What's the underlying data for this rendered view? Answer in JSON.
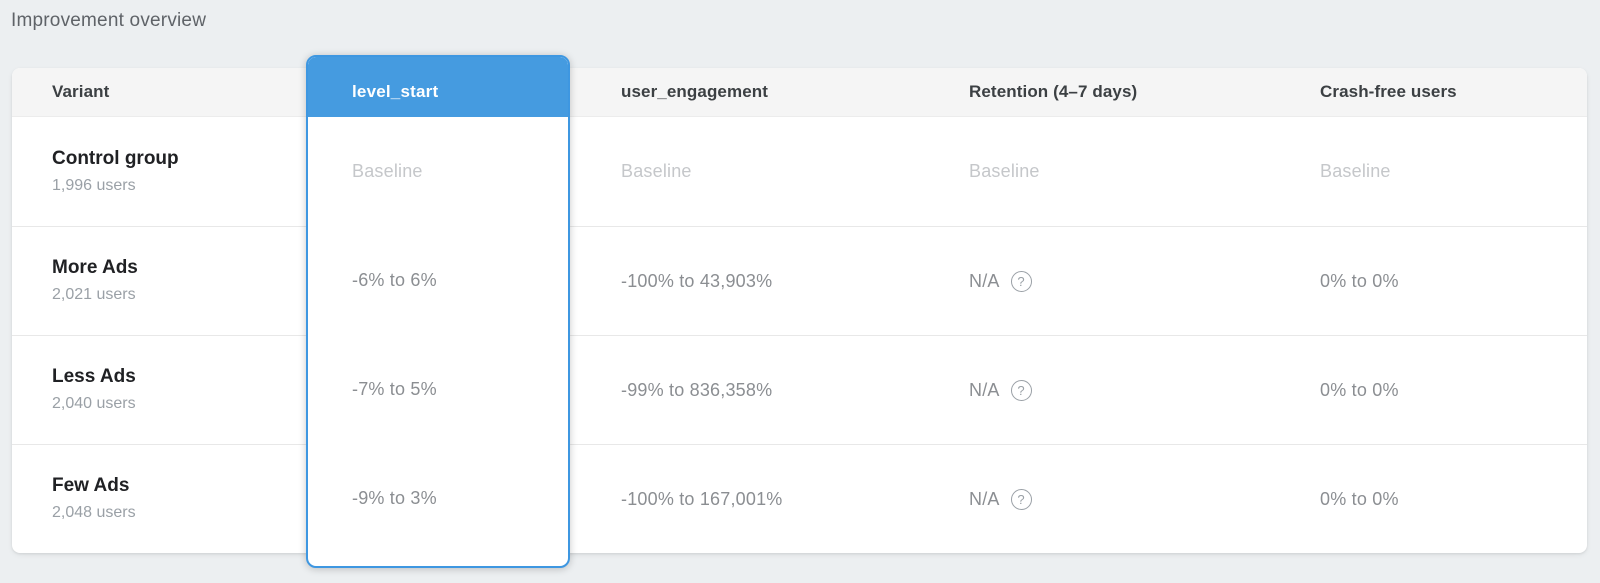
{
  "page": {
    "title": "Improvement overview"
  },
  "table": {
    "accent_color": "#459be0",
    "accent_border_color": "#3e97e1",
    "columns": [
      {
        "id": "variant",
        "label": "Variant",
        "selected": false
      },
      {
        "id": "level_start",
        "label": "level_start",
        "selected": true
      },
      {
        "id": "user_engagement",
        "label": "user_engagement",
        "selected": false
      },
      {
        "id": "retention",
        "label": "Retention (4–7 days)",
        "selected": false
      },
      {
        "id": "crash_free",
        "label": "Crash-free users",
        "selected": false
      }
    ],
    "icons": {
      "help_glyph": "?"
    },
    "rows": [
      {
        "variant": "Control group",
        "users": "1,996 users",
        "level_start": "Baseline",
        "user_engagement": "Baseline",
        "retention": "Baseline",
        "retention_has_help": false,
        "crash_free": "Baseline",
        "baseline": true
      },
      {
        "variant": "More Ads",
        "users": "2,021 users",
        "level_start": "-6% to 6%",
        "user_engagement": "-100% to 43,903%",
        "retention": "N/A",
        "retention_has_help": true,
        "crash_free": "0% to 0%",
        "baseline": false
      },
      {
        "variant": "Less Ads",
        "users": "2,040 users",
        "level_start": "-7% to 5%",
        "user_engagement": "-99% to 836,358%",
        "retention": "N/A",
        "retention_has_help": true,
        "crash_free": "0% to 0%",
        "baseline": false
      },
      {
        "variant": "Few Ads",
        "users": "2,048 users",
        "level_start": "-9% to 3%",
        "user_engagement": "-100% to 167,001%",
        "retention": "N/A",
        "retention_has_help": true,
        "crash_free": "0% to 0%",
        "baseline": false
      }
    ]
  }
}
